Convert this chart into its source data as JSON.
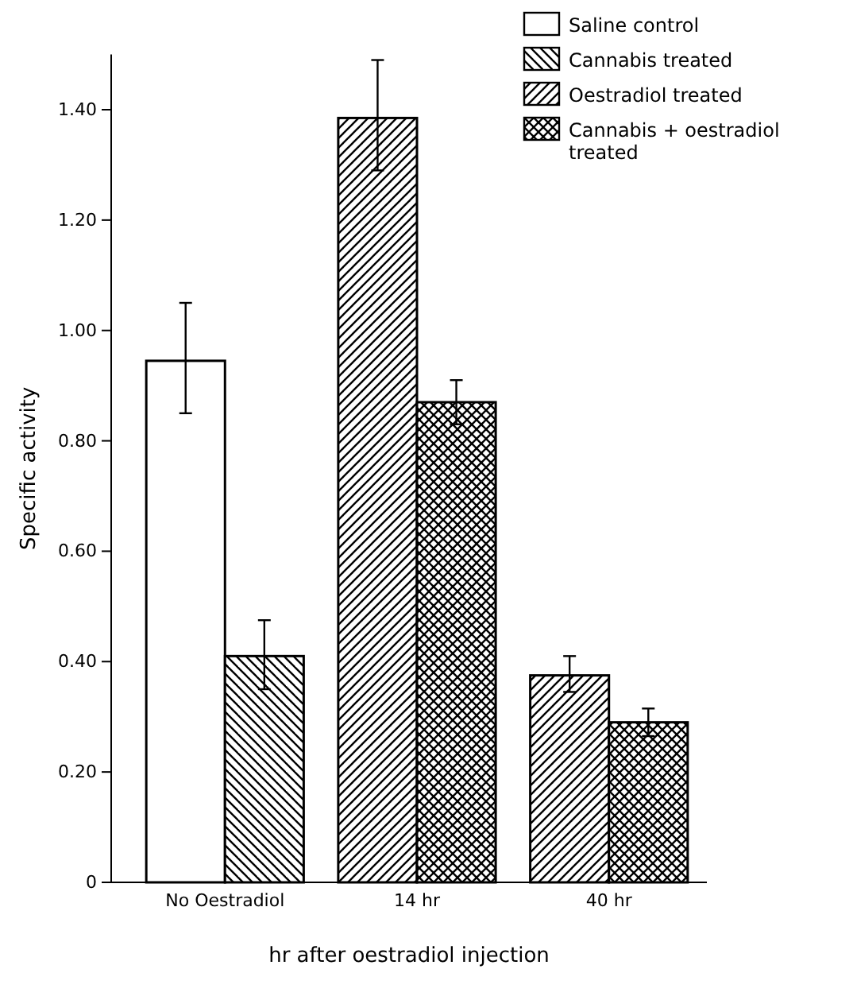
{
  "chart_data": {
    "type": "bar",
    "xlabel": "hr after oestradiol injection",
    "ylabel": "Specific activity",
    "categories": [
      "No Oestradiol",
      "14 hr",
      "40 hr"
    ],
    "series": [
      {
        "name": "Saline control",
        "color": "#ffffff",
        "values": [
          0.945,
          null,
          null
        ],
        "errors": [
          [
            0.85,
            1.05
          ],
          null,
          null
        ]
      },
      {
        "name": "Cannabis treated",
        "color": "#000000",
        "values": [
          0.41,
          null,
          null
        ],
        "errors": [
          [
            0.35,
            0.475
          ],
          null,
          null
        ]
      },
      {
        "name": "Oestradiol treated",
        "color": "#000000",
        "values": [
          null,
          1.385,
          0.375
        ],
        "errors": [
          null,
          [
            1.29,
            1.49
          ],
          [
            0.345,
            0.41
          ]
        ]
      },
      {
        "name": "Cannabis + oestradiol treated",
        "color": "#000000",
        "values": [
          null,
          0.87,
          0.29
        ],
        "errors": [
          null,
          [
            0.83,
            0.91
          ],
          [
            0.265,
            0.315
          ]
        ]
      }
    ],
    "ylim": [
      0,
      1.5
    ],
    "yticks": [
      0,
      {
        "value": 0.2,
        "label": "0.20"
      },
      {
        "value": 0.4,
        "label": "0.40"
      },
      {
        "value": 0.6,
        "label": "0.60"
      },
      {
        "value": 0.8,
        "label": "0.80"
      },
      {
        "value": 1.0,
        "label": "1.00"
      },
      {
        "value": 1.2,
        "label": "1.20"
      },
      {
        "value": 1.4,
        "label": "1.40"
      }
    ],
    "grid": false,
    "legend": "top right"
  }
}
